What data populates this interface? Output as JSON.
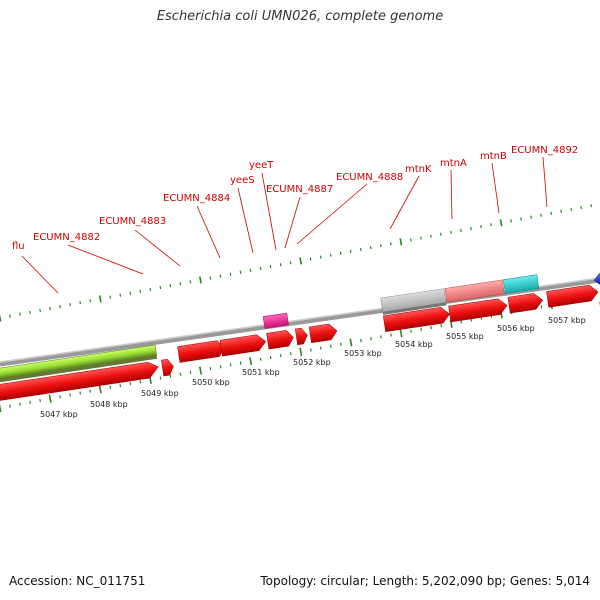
{
  "title": "Escherichia coli UMN026, complete genome",
  "footer": {
    "accession": "Accession: NC_011751",
    "summary": "Topology: circular; Length: 5,202,090 bp; Genes: 5,014"
  },
  "colors": {
    "gene_label": "#cc0000",
    "cds": "#ee1111",
    "tick": "#228822",
    "backbone": "#888888",
    "green_feature": "#99dd33",
    "grey_feature": "#bbbbbb",
    "pink_feature": "#ee8888",
    "cyan_feature": "#22cccc",
    "magenta_feature": "#ee2299",
    "blue_feature": "#1133ee",
    "orange_feature": "#ff8800"
  },
  "gene_labels": [
    "flu",
    "ECUMN_4882",
    "ECUMN_4883",
    "ECUMN_4884",
    "yeeS",
    "yeeT",
    "ECUMN_4887",
    "ECUMN_4888",
    "mtnK",
    "mtnA",
    "mtnB",
    "ECUMN_4892"
  ],
  "scale_labels": [
    "5047 kbp",
    "5048 kbp",
    "5049 kbp",
    "5050 kbp",
    "5051 kbp",
    "5052 kbp",
    "5053 kbp",
    "5054 kbp",
    "5055 kbp",
    "5056 kbp",
    "5057 kbp"
  ]
}
